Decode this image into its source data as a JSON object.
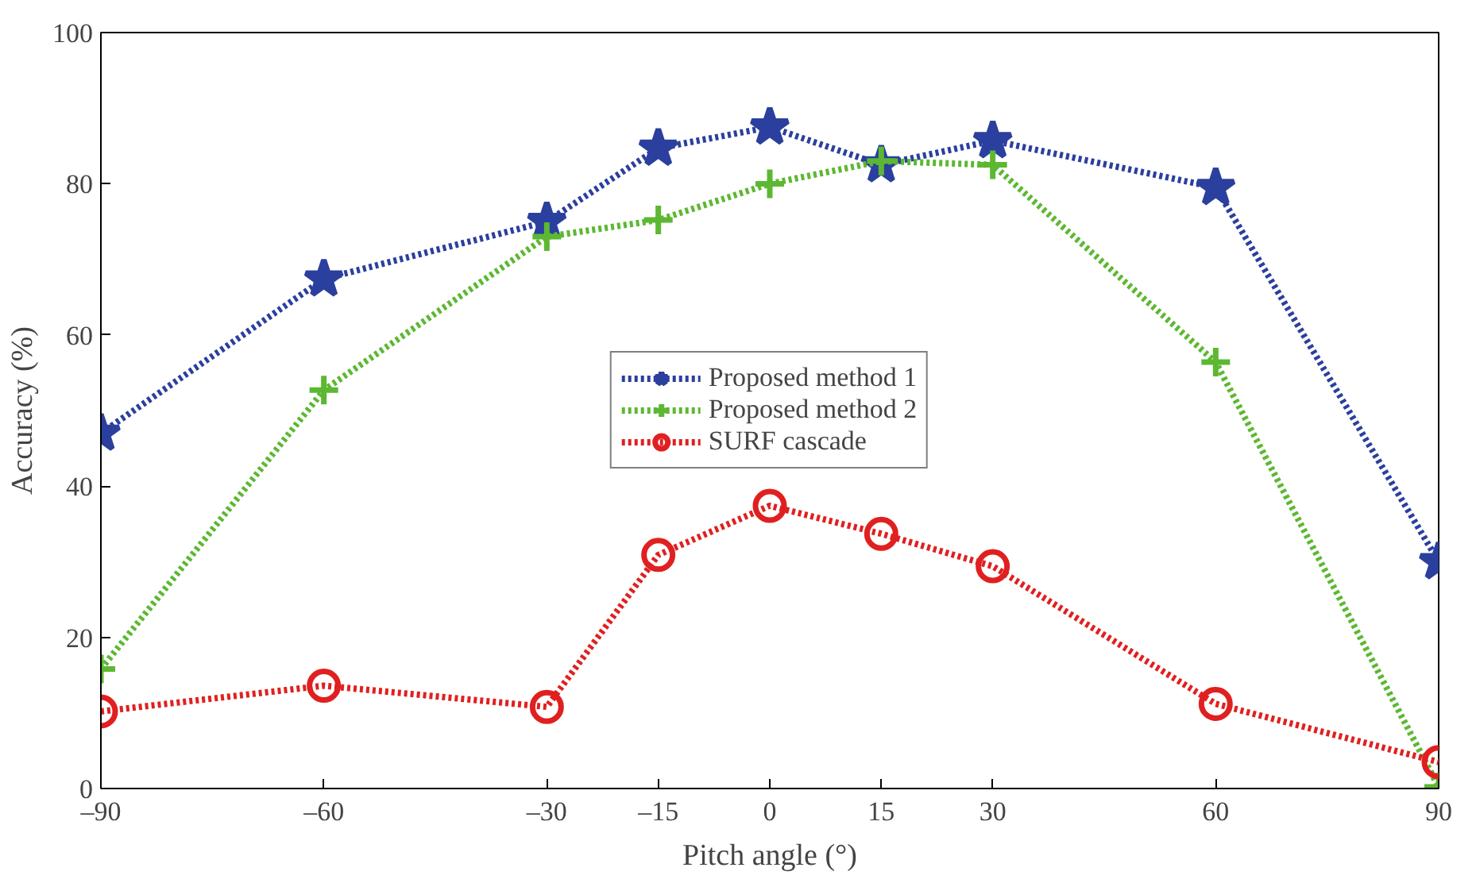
{
  "chart_data": {
    "type": "line",
    "xlabel": "Pitch angle (°)",
    "ylabel": "Accuracy (%)",
    "x": [
      -90,
      -60,
      -30,
      -15,
      0,
      15,
      30,
      60,
      90
    ],
    "xlim": [
      -90,
      90
    ],
    "xticks": [
      {
        "value": -90,
        "label": "–90"
      },
      {
        "value": -60,
        "label": "–60"
      },
      {
        "value": -30,
        "label": "–30"
      },
      {
        "value": -15,
        "label": "–15"
      },
      0,
      15,
      30,
      60,
      90
    ],
    "ylim": [
      0,
      100
    ],
    "yticks": [
      0,
      20,
      40,
      60,
      80,
      100
    ],
    "grid": false,
    "legend": "center",
    "line_style": "dotted",
    "series": [
      {
        "name": "Proposed method 1",
        "color": "#2b3f9e",
        "marker": "star",
        "values": [
          47,
          67.4,
          75,
          84.7,
          87.5,
          82.5,
          85.7,
          79.5,
          30
        ]
      },
      {
        "name": "Proposed method 2",
        "color": "#5cb832",
        "marker": "cross",
        "values": [
          15.8,
          52.7,
          73,
          75.2,
          80,
          83,
          82.5,
          56.4,
          0.2
        ]
      },
      {
        "name": "SURF cascade",
        "color": "#e02020",
        "marker": "circle",
        "values": [
          10.2,
          13.6,
          10.8,
          30.9,
          37.4,
          33.7,
          29.4,
          11.2,
          3.5
        ]
      }
    ]
  }
}
